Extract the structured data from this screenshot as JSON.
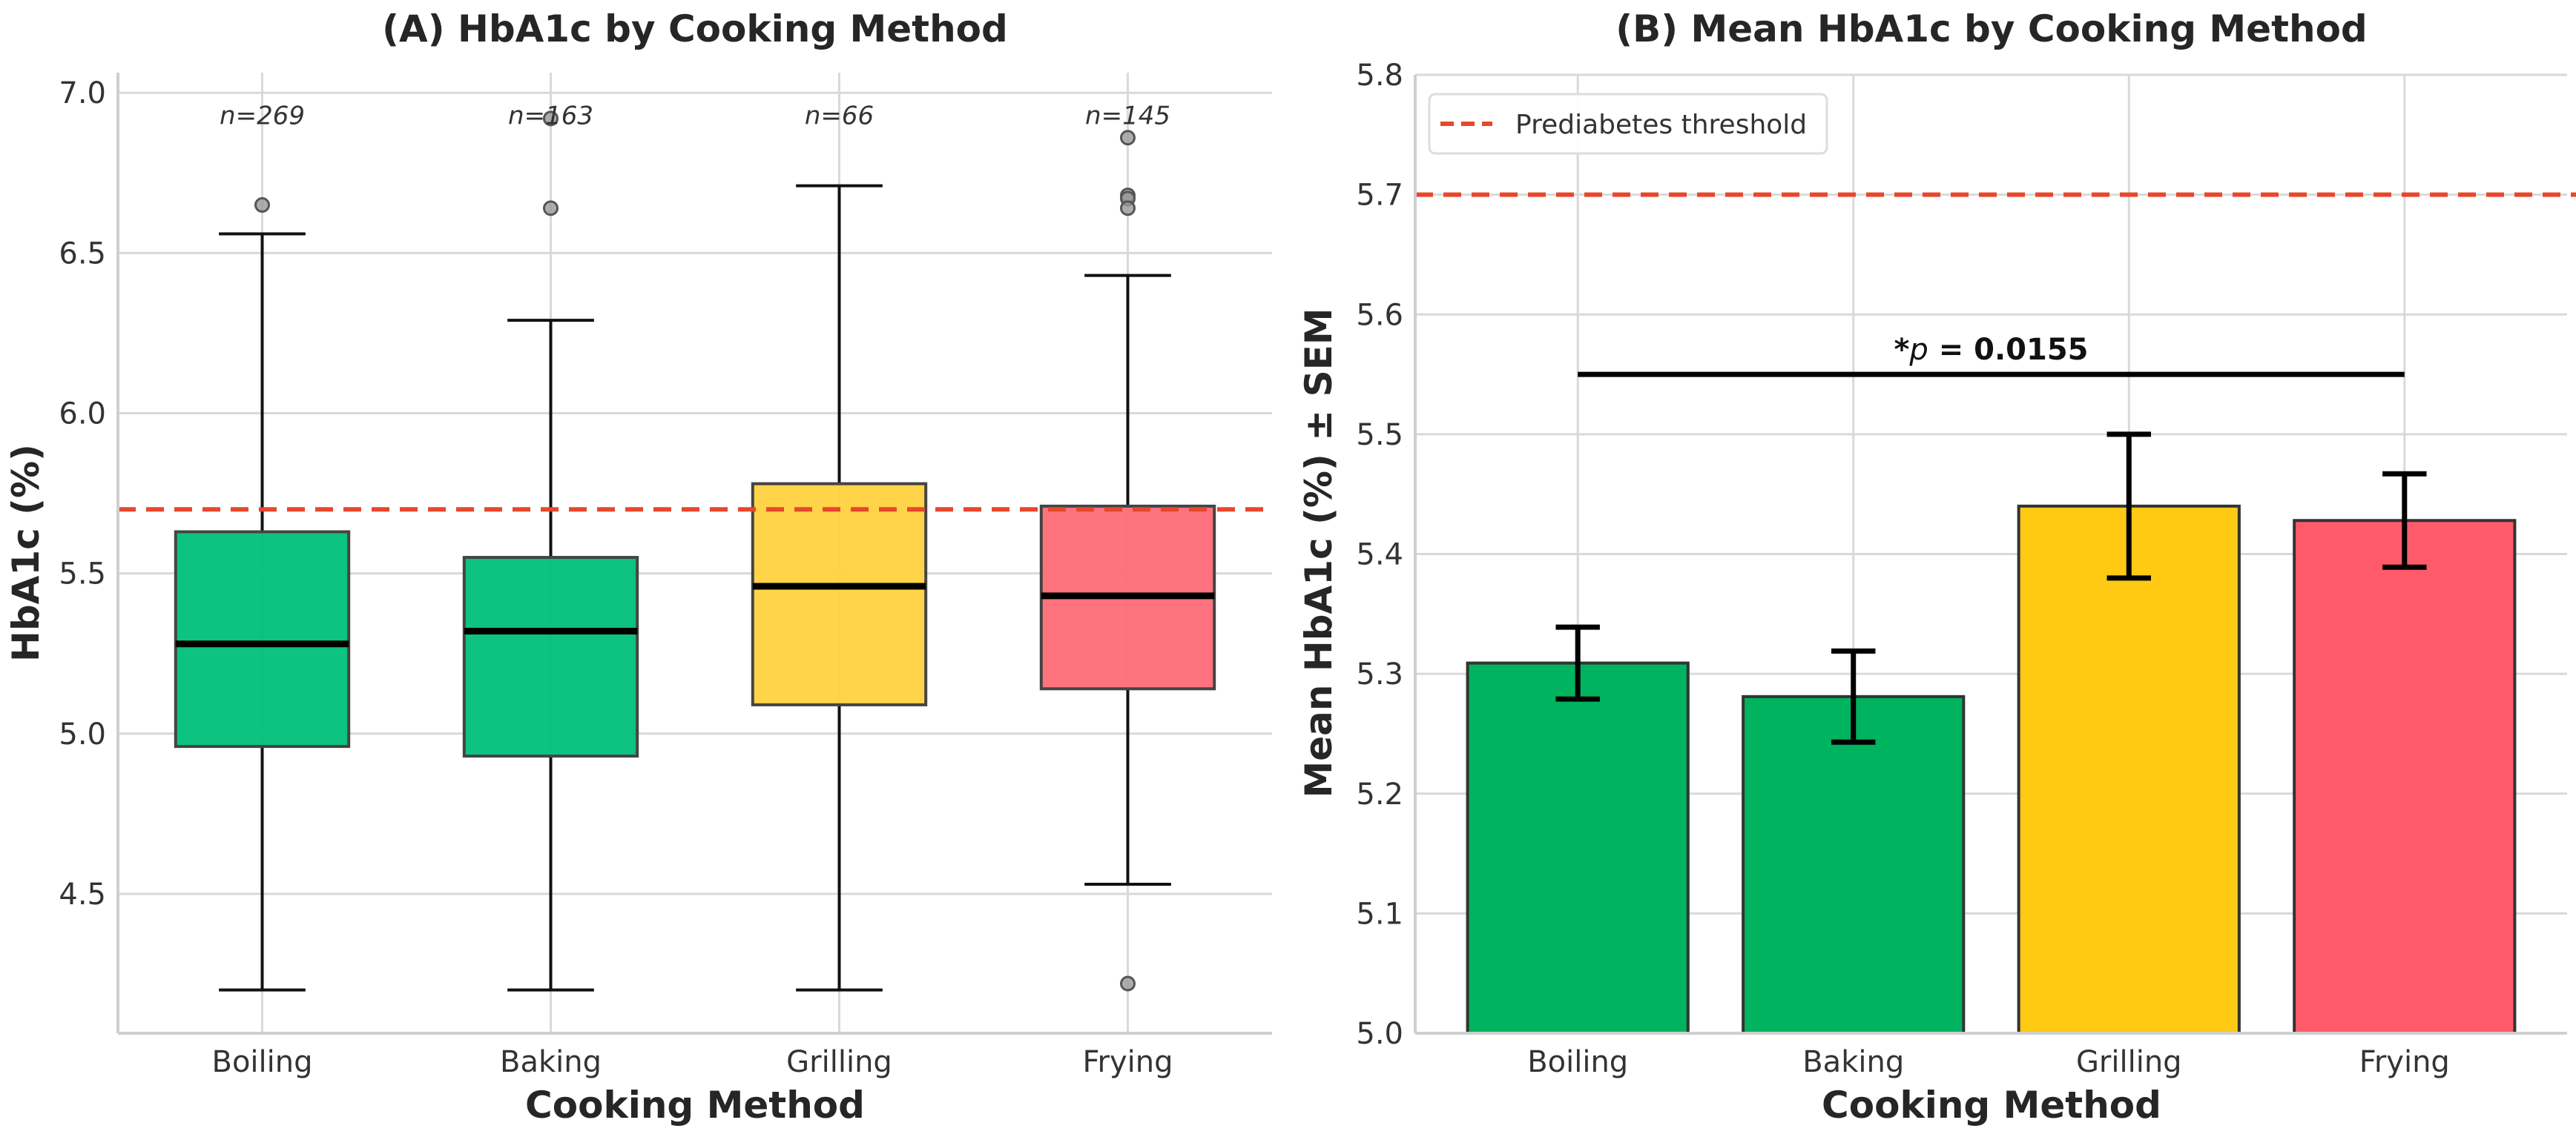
{
  "chart_data": [
    {
      "type": "box",
      "title": "(A) HbA1c by Cooking Method",
      "xlabel": "Cooking Method",
      "ylabel": "HbA1c (%)",
      "categories": [
        "Boiling",
        "Baking",
        "Grilling",
        "Frying"
      ],
      "ylim": [
        4.065,
        7.063
      ],
      "yticks": [
        4.5,
        5.0,
        5.5,
        6.0,
        6.5,
        7.0
      ],
      "ytick_labels": [
        "4.5",
        "5.0",
        "5.5",
        "6.0",
        "6.5",
        "7.0"
      ],
      "grid": true,
      "boxes": [
        {
          "category": "Boiling",
          "whisker_low": 4.2,
          "q1": 4.96,
          "median": 5.28,
          "q3": 5.63,
          "whisker_high": 6.56,
          "outliers": [
            6.65
          ],
          "n_label": "n=269",
          "color": "#00c07a"
        },
        {
          "category": "Baking",
          "whisker_low": 4.2,
          "q1": 4.93,
          "median": 5.32,
          "q3": 5.55,
          "whisker_high": 6.29,
          "outliers": [
            6.64,
            6.92
          ],
          "n_label": "n=163",
          "color": "#00c07a"
        },
        {
          "category": "Grilling",
          "whisker_low": 4.2,
          "q1": 5.09,
          "median": 5.46,
          "q3": 5.78,
          "whisker_high": 6.71,
          "outliers": [],
          "n_label": "n=66",
          "color": "#ffd23f"
        },
        {
          "category": "Frying",
          "whisker_low": 4.53,
          "q1": 5.14,
          "median": 5.43,
          "q3": 5.71,
          "whisker_high": 6.43,
          "outliers": [
            6.86,
            6.68,
            6.67,
            6.64,
            4.22
          ],
          "n_label": "n=145",
          "color": "#ff6b78"
        }
      ],
      "reference_line": {
        "y": 5.7,
        "color": "#e8472b"
      }
    },
    {
      "type": "bar",
      "title": "(B) Mean HbA1c by Cooking Method",
      "xlabel": "Cooking Method",
      "ylabel": "Mean HbA1c (%) ± SEM",
      "categories": [
        "Boiling",
        "Baking",
        "Grilling",
        "Frying"
      ],
      "values": [
        5.309,
        5.281,
        5.44,
        5.428
      ],
      "errors": [
        0.03,
        0.038,
        0.06,
        0.039
      ],
      "colors": [
        "#00b35e",
        "#00b35e",
        "#ffc914",
        "#ff5a6a"
      ],
      "ylim": [
        5.0,
        5.8
      ],
      "yticks": [
        5.0,
        5.1,
        5.2,
        5.3,
        5.4,
        5.5,
        5.6,
        5.7,
        5.8
      ],
      "ytick_labels": [
        "5.0",
        "5.1",
        "5.2",
        "5.3",
        "5.4",
        "5.5",
        "5.6",
        "5.7",
        "5.8"
      ],
      "grid": true,
      "reference_line": {
        "y": 5.7,
        "color": "#e8472b",
        "legend": "Prediabetes threshold"
      },
      "legend_position": "top-left",
      "significance": {
        "from": "Boiling",
        "to": "Frying",
        "y": 5.55,
        "star": "*",
        "p_symbol": "p",
        "text": " = 0.0155"
      }
    }
  ]
}
